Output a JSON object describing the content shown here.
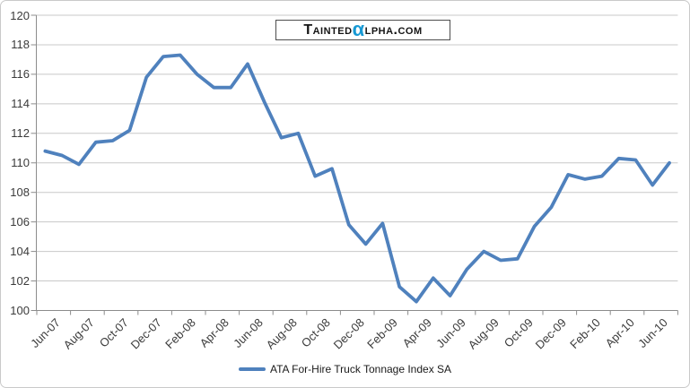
{
  "logo": {
    "prefix": "Tainted",
    "alpha": "α",
    "suffix": "lpha.com"
  },
  "colors": {
    "line": "#4F81BD",
    "grid": "#C8C8C8",
    "axis": "#8C8C8C",
    "tick": "#8C8C8C",
    "label": "#3B3B3B",
    "alpha_blue": "#1799D4",
    "logo_border": "#4D4D4D",
    "frame_border": "#C9C9C9",
    "background": "#FFFFFF"
  },
  "legend": {
    "label": "ATA For-Hire Truck Tonnage Index SA"
  },
  "chart_data": {
    "type": "line",
    "title": "",
    "xlabel": "",
    "ylabel": "",
    "x": [
      "Jun-07",
      "Jul-07",
      "Aug-07",
      "Sep-07",
      "Oct-07",
      "Nov-07",
      "Dec-07",
      "Jan-08",
      "Feb-08",
      "Mar-08",
      "Apr-08",
      "May-08",
      "Jun-08",
      "Jul-08",
      "Aug-08",
      "Sep-08",
      "Oct-08",
      "Nov-08",
      "Dec-08",
      "Jan-09",
      "Feb-09",
      "Mar-09",
      "Apr-09",
      "May-09",
      "Jun-09",
      "Jul-09",
      "Aug-09",
      "Sep-09",
      "Oct-09",
      "Nov-09",
      "Dec-09",
      "Jan-10",
      "Feb-10",
      "Mar-10",
      "Apr-10",
      "May-10",
      "Jun-10",
      "Jul-10"
    ],
    "series": [
      {
        "name": "ATA For-Hire Truck Tonnage Index SA",
        "color": "#4F81BD",
        "values": [
          110.8,
          110.5,
          109.9,
          111.4,
          111.5,
          112.2,
          115.8,
          117.2,
          117.3,
          116.0,
          115.1,
          115.1,
          116.7,
          114.1,
          111.7,
          112.0,
          109.1,
          109.6,
          105.8,
          104.5,
          105.9,
          101.6,
          100.6,
          102.2,
          101.0,
          102.8,
          104.0,
          103.4,
          103.5,
          105.7,
          107.0,
          109.2,
          108.9,
          109.1,
          110.3,
          110.2,
          108.5,
          110.0
        ]
      }
    ],
    "ylim": [
      100,
      120
    ],
    "ytick_step": 2,
    "xtick_interval": 2,
    "grid": "horizontal",
    "legend_position": "bottom"
  }
}
